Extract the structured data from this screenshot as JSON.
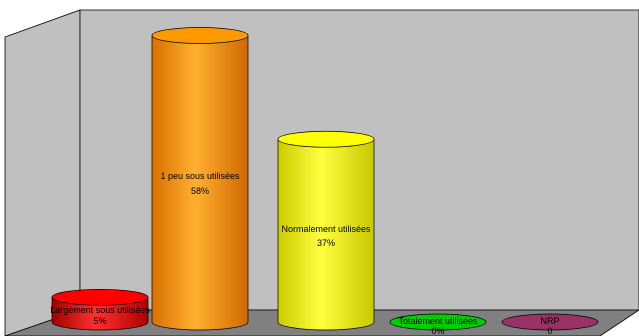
{
  "chart_data": {
    "type": "bar",
    "style": "3d-cylinder",
    "title": "",
    "xlabel": "",
    "ylabel": "",
    "ylim": [
      0,
      60
    ],
    "grid": false,
    "legend": "none",
    "categories": [
      "Largement sous utilisées",
      "1 peu sous utilisées",
      "Normalement utilisées",
      "Totalement utilisées",
      "NRP"
    ],
    "values": [
      5,
      58,
      37,
      0,
      0
    ],
    "value_labels": [
      "5%",
      "58%",
      "37%",
      "0%",
      "0"
    ],
    "colors": [
      "#ff0000",
      "#ff9900",
      "#ffff00",
      "#00cc00",
      "#993366"
    ],
    "wall_color": "#c0c0c0",
    "floor_color": "#808080"
  }
}
